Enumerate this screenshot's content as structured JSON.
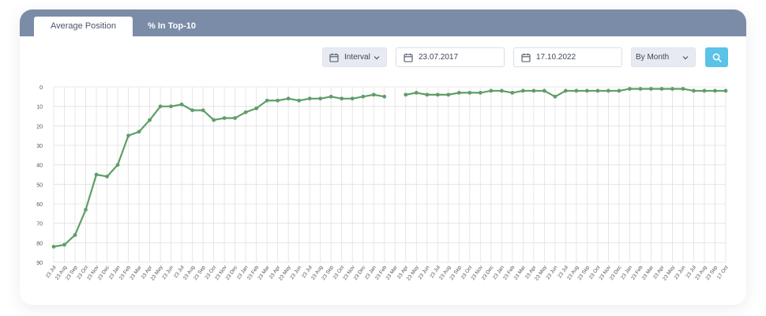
{
  "tabs": [
    {
      "label": "Average Position",
      "active": true
    },
    {
      "label": "% In Top-10",
      "active": false
    }
  ],
  "controls": {
    "interval_label": "Interval",
    "date_from": "23.07.2017",
    "date_to": "17.10.2022",
    "group_by": "By Month"
  },
  "colors": {
    "header": "#7a8ca7",
    "line": "#5f9e68",
    "search_button": "#5bc2e8",
    "grid": "#e1e1e1"
  },
  "icons": [
    "calendar-icon",
    "chevron-down-icon",
    "search-icon"
  ],
  "chart_data": {
    "type": "line",
    "title": "",
    "xlabel": "",
    "ylabel": "",
    "y_inverted": true,
    "ylim": [
      0,
      90
    ],
    "y_ticks": [
      0,
      10,
      20,
      30,
      40,
      50,
      60,
      70,
      80,
      90
    ],
    "grid": true,
    "categories": [
      "23 Jul",
      "23 Aug",
      "23 Sep",
      "23 Oct",
      "23 Nov",
      "23 Dec",
      "23 Jan",
      "23 Feb",
      "23 Mar",
      "23 Apr",
      "23 May",
      "23 Jun",
      "23 Jul",
      "23 Aug",
      "23 Sep",
      "23 Oct",
      "23 Nov",
      "23 Dec",
      "23 Jan",
      "23 Feb",
      "23 Mar",
      "23 Apr",
      "23 May",
      "23 Jun",
      "23 Jul",
      "23 Aug",
      "23 Sep",
      "23 Oct",
      "23 Nov",
      "23 Dec",
      "23 Jan",
      "23 Feb",
      "23 Mar",
      "23 Apr",
      "23 May",
      "23 Jun",
      "23 Jul",
      "23 Aug",
      "23 Sep",
      "23 Oct",
      "23 Nov",
      "23 Dec",
      "23 Jan",
      "23 Feb",
      "23 Mar",
      "23 Apr",
      "23 May",
      "23 Jun",
      "23 Jul",
      "23 Aug",
      "23 Sep",
      "23 Oct",
      "23 Nov",
      "23 Dec",
      "23 Jan",
      "23 Feb",
      "23 Mar",
      "23 Apr",
      "23 May",
      "23 Jun",
      "23 Jul",
      "23 Aug",
      "23 Sep",
      "17 Oct"
    ],
    "series": [
      {
        "values": [
          82,
          81,
          76,
          63,
          45,
          46,
          40,
          25,
          23,
          17,
          10,
          10,
          9,
          12,
          12,
          17,
          16,
          16,
          13,
          11,
          7,
          7,
          6,
          7,
          6,
          6,
          5,
          6,
          6,
          5,
          4,
          5,
          null,
          4,
          3,
          4,
          4,
          4,
          3,
          3,
          3,
          2,
          2,
          3,
          2,
          2,
          2,
          5,
          2,
          2,
          2,
          2,
          2,
          2,
          1,
          1,
          1,
          1,
          1,
          1,
          2,
          2,
          2,
          2
        ]
      }
    ]
  }
}
